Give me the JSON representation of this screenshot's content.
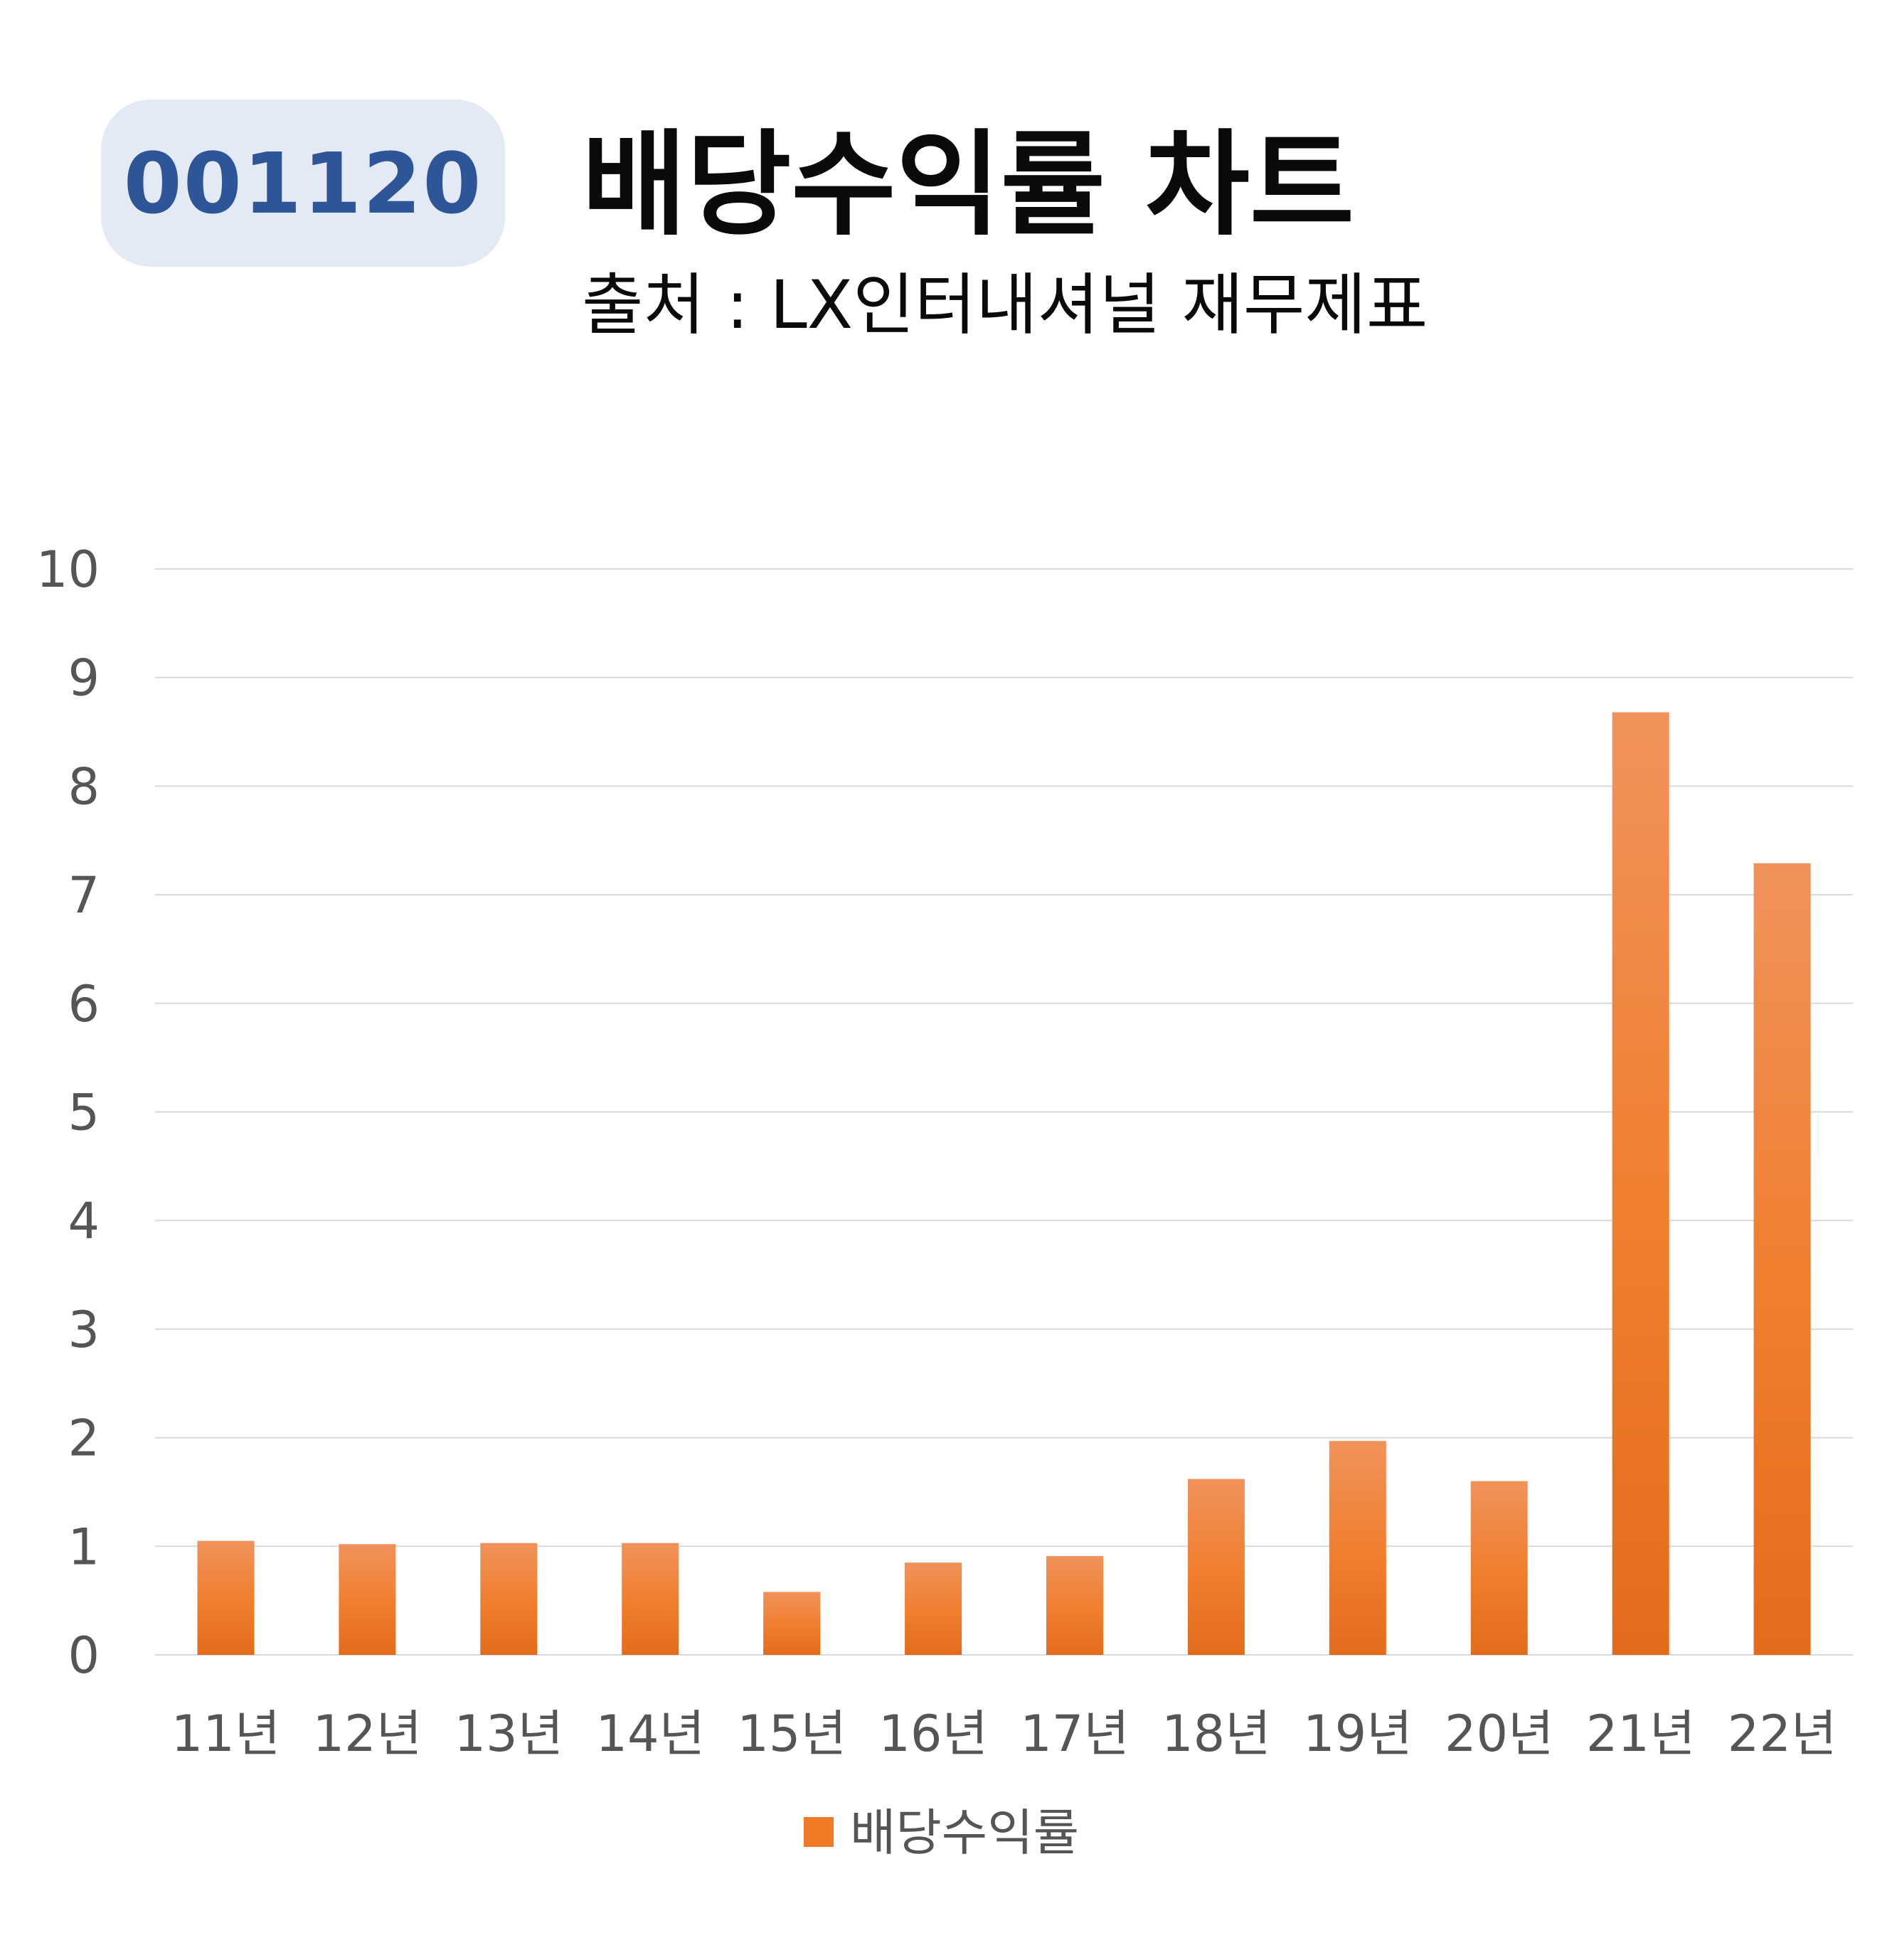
{
  "header": {
    "code": "001120",
    "title": "배당수익률 차트",
    "subtitle": "출처 : LX인터내셔널 재무제표"
  },
  "chart_data": {
    "type": "bar",
    "title": "배당수익률 차트",
    "subtitle": "출처 : LX인터내셔널 재무제표",
    "categories": [
      "11년",
      "12년",
      "13년",
      "14년",
      "15년",
      "16년",
      "17년",
      "18년",
      "19년",
      "20년",
      "21년",
      "22년"
    ],
    "series": [
      {
        "name": "배당수익률",
        "values": [
          1.05,
          1.02,
          1.03,
          1.03,
          0.58,
          0.85,
          0.91,
          1.62,
          1.97,
          1.6,
          8.68,
          7.29
        ]
      }
    ],
    "xlabel": "",
    "ylabel": "",
    "ylim": [
      0,
      10
    ],
    "yticks": [
      "0",
      "1",
      "2",
      "3",
      "4",
      "5",
      "6",
      "7",
      "8",
      "9",
      "10"
    ],
    "grid": true,
    "legend_position": "bottom",
    "colors": {
      "bar_top": "#f1925c",
      "bar_mid": "#f07e2c",
      "bar_bottom": "#e26c1c",
      "legend_swatch": "#f07a28",
      "gridline": "#d9d9d9",
      "badge_bg": "#e3e9f5",
      "badge_text": "#2e5597"
    }
  }
}
